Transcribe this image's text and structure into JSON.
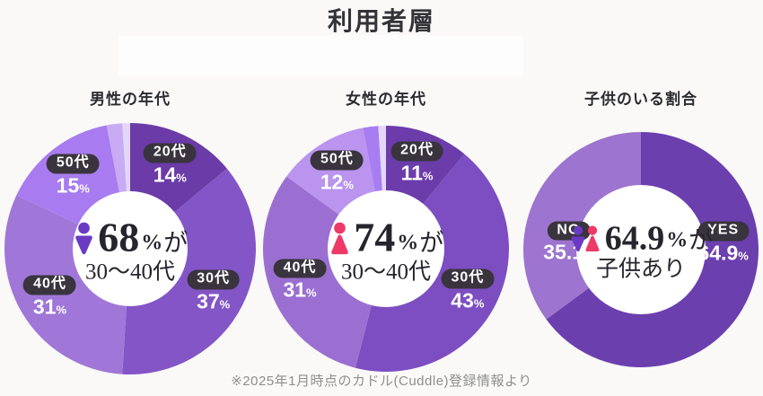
{
  "page": {
    "title": "利用者層",
    "footnote": "※2025年1月時点のカドル(Cuddle)登録情報より",
    "background_color": "#faf9f8",
    "pill_color": "#39343d",
    "label_text_color": "#ffffff",
    "center_text_color": "#26242c"
  },
  "icons": {
    "person-male": {
      "name": "male-person-icon",
      "color": "#6a3ac4"
    },
    "person-female": {
      "name": "female-person-icon",
      "color": "#ee3a68"
    }
  },
  "chart_data": [
    {
      "type": "pie",
      "variant": "donut",
      "title": "男性の年代",
      "unit": "%",
      "legend_position": "on-slices",
      "slices": [
        {
          "label": "20代",
          "pct": 14,
          "color": "#6b3ba8",
          "show_label": true
        },
        {
          "label": "30代",
          "pct": 37,
          "color": "#8355c6",
          "show_label": true
        },
        {
          "label": "40代",
          "pct": 31,
          "color": "#a077d8",
          "show_label": true
        },
        {
          "label": "50代",
          "pct": 15,
          "color": "#a87cf0",
          "show_label": true
        },
        {
          "label": "",
          "pct": 2,
          "color": "#c9abf4",
          "show_label": false
        },
        {
          "label": "",
          "pct": 1,
          "color": "#e3d7f8",
          "show_label": false
        }
      ],
      "center": {
        "icons": [
          "person-male"
        ],
        "number": "68",
        "unit": "%",
        "suffix": "が",
        "line2": "30〜40代"
      }
    },
    {
      "type": "pie",
      "variant": "donut",
      "title": "女性の年代",
      "unit": "%",
      "legend_position": "on-slices",
      "slices": [
        {
          "label": "20代",
          "pct": 11,
          "color": "#6c3cab",
          "show_label": true
        },
        {
          "label": "30代",
          "pct": 43,
          "color": "#7d4ec1",
          "show_label": true
        },
        {
          "label": "40代",
          "pct": 31,
          "color": "#9b6fd2",
          "show_label": true
        },
        {
          "label": "50代",
          "pct": 12,
          "color": "#ba94ee",
          "show_label": true
        },
        {
          "label": "",
          "pct": 2,
          "color": "#a87df2",
          "show_label": false
        },
        {
          "label": "",
          "pct": 1,
          "color": "#e3d8f8",
          "show_label": false
        }
      ],
      "center": {
        "icons": [
          "person-female"
        ],
        "number": "74",
        "unit": "%",
        "suffix": "が",
        "line2": "30〜40代"
      }
    },
    {
      "type": "pie",
      "variant": "donut",
      "title": "子供のいる割合",
      "unit": "%",
      "legend_position": "on-slices",
      "slices": [
        {
          "label": "YES",
          "pct": 64.9,
          "color": "#6c3fae",
          "show_label": true
        },
        {
          "label": "NO",
          "pct": 35.1,
          "color": "#9d74cf",
          "show_label": true
        }
      ],
      "center": {
        "icons": [
          "person-male",
          "person-female"
        ],
        "number": "64.9",
        "unit": "%",
        "suffix": "が",
        "line2": "子供あり"
      }
    }
  ]
}
